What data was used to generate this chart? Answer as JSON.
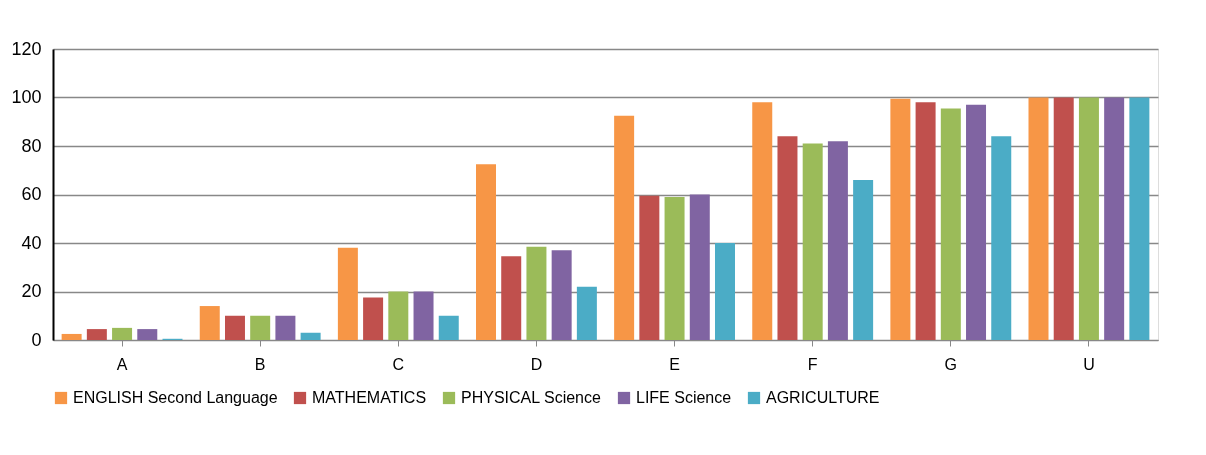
{
  "chart_data": {
    "type": "bar",
    "categories": [
      "A",
      "B",
      "C",
      "D",
      "E",
      "F",
      "G",
      "U"
    ],
    "series": [
      {
        "name": "ENGLISH Second Language",
        "color": "#f79646",
        "values": [
          2.5,
          14,
          38,
          72.5,
          92.5,
          98,
          99.5,
          100
        ]
      },
      {
        "name": "MATHEMATICS",
        "color": "#c0504d",
        "values": [
          4.5,
          10,
          17.5,
          34.5,
          59.5,
          84,
          98,
          100
        ]
      },
      {
        "name": "PHYSICAL Science",
        "color": "#9bbb59",
        "values": [
          5,
          10,
          20,
          38.5,
          59,
          81,
          95.5,
          100
        ]
      },
      {
        "name": "LIFE Science",
        "color": "#8064a2",
        "values": [
          4.5,
          10,
          20,
          37,
          60,
          82,
          97,
          100
        ]
      },
      {
        "name": "AGRICULTURE",
        "color": "#4bacc6",
        "values": [
          0.5,
          3,
          10,
          22,
          40,
          66,
          84,
          100
        ]
      }
    ],
    "ylim": [
      0,
      120
    ],
    "yticks": [
      0,
      20,
      40,
      60,
      80,
      100,
      120
    ],
    "grid": "y",
    "legend": "bottom"
  }
}
